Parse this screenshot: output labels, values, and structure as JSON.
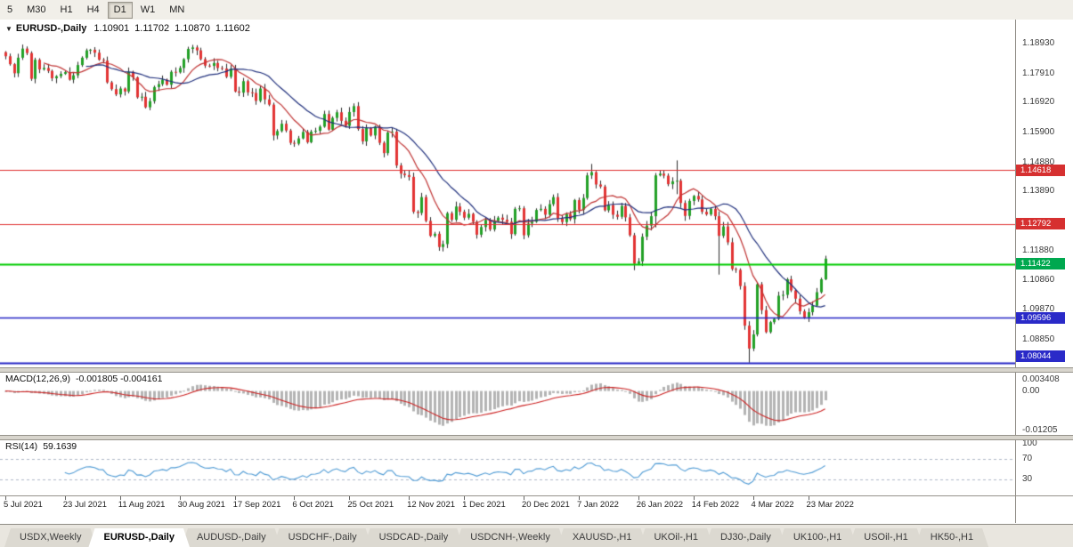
{
  "toolbar": {
    "timeframes": [
      {
        "label": "5",
        "active": false
      },
      {
        "label": "M30",
        "active": false
      },
      {
        "label": "H1",
        "active": false
      },
      {
        "label": "H4",
        "active": false
      },
      {
        "label": "D1",
        "active": true
      },
      {
        "label": "W1",
        "active": false
      },
      {
        "label": "MN",
        "active": false
      }
    ]
  },
  "chart_header": {
    "dropdown_icon": "▼",
    "symbol": "EURUSD-,Daily",
    "open": "1.10901",
    "high": "1.11702",
    "low": "1.10870",
    "close": "1.11602"
  },
  "price_axis": {
    "ticks": [
      {
        "label": "1.18930",
        "value": 1.1893
      },
      {
        "label": "1.17910",
        "value": 1.1791
      },
      {
        "label": "1.16920",
        "value": 1.1692
      },
      {
        "label": "1.15900",
        "value": 1.159
      },
      {
        "label": "1.14880",
        "value": 1.1488
      },
      {
        "label": "1.13890",
        "value": 1.1389
      },
      {
        "label": "1.11880",
        "value": 1.1188
      },
      {
        "label": "1.10860",
        "value": 1.1086
      },
      {
        "label": "1.09870",
        "value": 1.0987
      },
      {
        "label": "1.08850",
        "value": 1.0885
      }
    ],
    "tags": [
      {
        "label": "1.14618",
        "value": 1.14618,
        "color": "#d63030"
      },
      {
        "label": "1.12792",
        "value": 1.12792,
        "color": "#d63030"
      },
      {
        "label": "1.11422",
        "value": 1.11422,
        "color": "#00a84f"
      },
      {
        "label": "1.09596",
        "value": 1.09596,
        "color": "#2a2ac8"
      },
      {
        "label": "1.08044",
        "value": 1.08044,
        "color": "#2a2ac8"
      }
    ]
  },
  "macd_panel": {
    "label": "MACD(12,26,9)",
    "values": "-0.001805 -0.004161",
    "ticks": [
      {
        "label": "0.003408",
        "value": 0.003408
      },
      {
        "label": "0.00",
        "value": 0
      },
      {
        "label": "-0.01205",
        "value": -0.01205
      }
    ]
  },
  "rsi_panel": {
    "label": "RSI(14)",
    "value": "59.1639",
    "ticks": [
      {
        "label": "100",
        "value": 100
      },
      {
        "label": "70",
        "value": 70
      },
      {
        "label": "30",
        "value": 30
      }
    ]
  },
  "date_axis": {
    "labels": [
      "5 Jul 2021",
      "23 Jul 2021",
      "11 Aug 2021",
      "30 Aug 2021",
      "17 Sep 2021",
      "6 Oct 2021",
      "25 Oct 2021",
      "12 Nov 2021",
      "1 Dec 2021",
      "20 Dec 2021",
      "7 Jan 2022",
      "26 Jan 2022",
      "14 Feb 2022",
      "4 Mar 2022",
      "23 Mar 2022"
    ]
  },
  "tabs": [
    {
      "label": "USDX,Weekly",
      "active": false
    },
    {
      "label": "EURUSD-,Daily",
      "active": true
    },
    {
      "label": "AUDUSD-,Daily",
      "active": false
    },
    {
      "label": "USDCHF-,Daily",
      "active": false
    },
    {
      "label": "USDCAD-,Daily",
      "active": false
    },
    {
      "label": "USDCNH-,Weekly",
      "active": false
    },
    {
      "label": "XAUUSD-,H1",
      "active": false
    },
    {
      "label": "UKOil-,H1",
      "active": false
    },
    {
      "label": "DJ30-,Daily",
      "active": false
    },
    {
      "label": "UK100-,H1",
      "active": false
    },
    {
      "label": "USOil-,H1",
      "active": false
    },
    {
      "label": "HK50-,H1",
      "active": false
    }
  ],
  "colors": {
    "up": "#23a127",
    "down": "#e23434",
    "wick": "#2b2b2b",
    "ma_fast": "#c03434",
    "ma_slow": "#20307d",
    "macd_hist": "#b4b4b4",
    "macd_signal": "#cc2222",
    "rsi_line": "#4f9bd5",
    "rsi_levels": "#b0b8c8",
    "level_red": "#e03030",
    "level_green": "#00cc00",
    "level_blue": "#2525c5"
  },
  "chart_data": {
    "type": "candlestick",
    "symbol": "EURUSD-,Daily",
    "timeframe": "Daily",
    "last_ohlc": {
      "open": 1.10901,
      "high": 1.11702,
      "low": 1.1087,
      "close": 1.11602
    },
    "y_range": [
      1.079,
      1.1975
    ],
    "first_open": 1.1864,
    "closes": [
      1.185,
      1.1823,
      1.1792,
      1.1845,
      1.1876,
      1.1861,
      1.1773,
      1.1838,
      1.1805,
      1.181,
      1.18,
      1.1775,
      1.1782,
      1.179,
      1.1796,
      1.177,
      1.1785,
      1.182,
      1.1845,
      1.187,
      1.1872,
      1.1862,
      1.1838,
      1.1835,
      1.1761,
      1.1738,
      1.172,
      1.174,
      1.173,
      1.1797,
      1.1778,
      1.171,
      1.1712,
      1.1676,
      1.1697,
      1.1745,
      1.1755,
      1.177,
      1.1753,
      1.1797,
      1.1795,
      1.181,
      1.184,
      1.1875,
      1.188,
      1.187,
      1.184,
      1.1818,
      1.1817,
      1.1827,
      1.181,
      1.1808,
      1.178,
      1.1807,
      1.173,
      1.1726,
      1.1765,
      1.1727,
      1.1725,
      1.1698,
      1.174,
      1.1703,
      1.1685,
      1.158,
      1.1595,
      1.162,
      1.1597,
      1.1555,
      1.1552,
      1.157,
      1.1592,
      1.1557,
      1.1593,
      1.1596,
      1.161,
      1.1653,
      1.16,
      1.164,
      1.1659,
      1.163,
      1.1613,
      1.166,
      1.168,
      1.1602,
      1.156,
      1.1605,
      1.158,
      1.161,
      1.1555,
      1.152,
      1.159,
      1.1593,
      1.1478,
      1.145,
      1.1445,
      1.1439,
      1.132,
      1.1316,
      1.137,
      1.1289,
      1.1238,
      1.1245,
      1.12,
      1.121,
      1.1315,
      1.1293,
      1.1338,
      1.132,
      1.13,
      1.1313,
      1.1286,
      1.1242,
      1.1268,
      1.1292,
      1.126,
      1.1289,
      1.13,
      1.1293,
      1.1286,
      1.1244,
      1.133,
      1.1332,
      1.124,
      1.128,
      1.1286,
      1.1326,
      1.133,
      1.131,
      1.1346,
      1.137,
      1.1297,
      1.1285,
      1.1312,
      1.1295,
      1.136,
      1.1327,
      1.1367,
      1.1444,
      1.1455,
      1.1413,
      1.1406,
      1.1325,
      1.1343,
      1.131,
      1.1303,
      1.134,
      1.1301,
      1.124,
      1.1143,
      1.1151,
      1.1235,
      1.1273,
      1.1305,
      1.1444,
      1.145,
      1.1443,
      1.1414,
      1.1424,
      1.1426,
      1.135,
      1.1306,
      1.1357,
      1.1374,
      1.1362,
      1.132,
      1.1311,
      1.133,
      1.1305,
      1.1238,
      1.127,
      1.1216,
      1.1125,
      1.1122,
      1.1067,
      1.0932,
      1.0854,
      1.0902,
      1.1073,
      1.0985,
      1.091,
      1.0944,
      1.0955,
      1.1034,
      1.1037,
      1.109,
      1.1052,
      1.1024,
      1.0981,
      1.096,
      1.0978,
      1.1,
      1.1046,
      1.109,
      1.11602
    ],
    "overrides": {
      "63": [
        1.1685,
        1.1692,
        1.1563,
        1.158
      ],
      "138": [
        1.1444,
        1.1483,
        1.1432,
        1.1455
      ],
      "148": [
        1.124,
        1.1248,
        1.1121,
        1.1143
      ],
      "153": [
        1.1305,
        1.1452,
        1.1267,
        1.1444
      ],
      "158": [
        1.1424,
        1.1495,
        1.138,
        1.1426
      ],
      "168": [
        1.1305,
        1.1321,
        1.1106,
        1.1238
      ],
      "175": [
        1.0932,
        1.0947,
        1.0806,
        1.0854
      ],
      "193": [
        1.10901,
        1.11702,
        1.1087,
        1.11602
      ]
    },
    "levels": [
      {
        "price": 1.14618,
        "color": "#e03030",
        "width": 1.2
      },
      {
        "price": 1.12792,
        "color": "#e03030",
        "width": 1.2
      },
      {
        "price": 1.11422,
        "color": "#00cc00",
        "width": 2
      },
      {
        "price": 1.09596,
        "color": "#2525c5",
        "width": 1.6
      },
      {
        "price": 1.08044,
        "color": "#2525c5",
        "width": 2
      }
    ],
    "indicators": {
      "ma_fast_period": 10,
      "ma_slow_period": 20,
      "macd": {
        "fast": 12,
        "slow": 26,
        "signal": 9,
        "display_main": -0.001805,
        "display_signal": -0.004161,
        "y_range": [
          -0.013,
          0.005
        ]
      },
      "rsi": {
        "period": 14,
        "display_value": 59.1639,
        "levels": [
          70,
          30
        ]
      }
    },
    "x_label_indices": [
      0,
      14,
      27,
      41,
      54,
      68,
      81,
      95,
      108,
      122,
      135,
      149,
      162,
      176,
      189
    ]
  }
}
